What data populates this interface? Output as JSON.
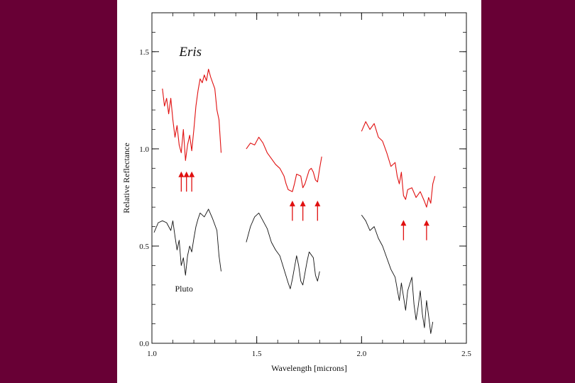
{
  "colors": {
    "background": "#680035",
    "panel": "#ffffff",
    "eris": "#e01010",
    "pluto": "#111111",
    "arrow": "#e01010"
  },
  "chart_data": {
    "type": "line",
    "xlabel": "Wavelength [microns]",
    "ylabel": "Relative Reflectance",
    "xlim": [
      1.0,
      2.5
    ],
    "ylim": [
      0.0,
      1.7
    ],
    "xticks": [
      "1.0",
      "1.5",
      "2.0",
      "2.5"
    ],
    "yticks": [
      "0.0",
      "0.5",
      "1.0",
      "1.5"
    ],
    "xtick_values": [
      1.0,
      1.5,
      2.0,
      2.5
    ],
    "ytick_values": [
      0.0,
      0.5,
      1.0,
      1.5
    ],
    "grid": false,
    "labels": {
      "eris": "Eris",
      "pluto": "Pluto"
    },
    "series": [
      {
        "name": "Eris",
        "segments": [
          [
            [
              1.05,
              1.31
            ],
            [
              1.06,
              1.22
            ],
            [
              1.07,
              1.26
            ],
            [
              1.08,
              1.18
            ],
            [
              1.09,
              1.26
            ],
            [
              1.1,
              1.15
            ],
            [
              1.11,
              1.06
            ],
            [
              1.12,
              1.12
            ],
            [
              1.13,
              1.02
            ],
            [
              1.14,
              0.98
            ],
            [
              1.15,
              1.1
            ],
            [
              1.16,
              0.94
            ],
            [
              1.17,
              1.02
            ],
            [
              1.18,
              1.07
            ],
            [
              1.19,
              0.99
            ],
            [
              1.2,
              1.1
            ],
            [
              1.21,
              1.22
            ],
            [
              1.22,
              1.3
            ],
            [
              1.23,
              1.36
            ],
            [
              1.24,
              1.34
            ],
            [
              1.25,
              1.38
            ],
            [
              1.26,
              1.35
            ],
            [
              1.27,
              1.41
            ],
            [
              1.28,
              1.37
            ],
            [
              1.29,
              1.34
            ],
            [
              1.3,
              1.31
            ],
            [
              1.31,
              1.2
            ],
            [
              1.32,
              1.15
            ],
            [
              1.33,
              0.98
            ]
          ],
          [
            [
              1.45,
              1.0
            ],
            [
              1.47,
              1.03
            ],
            [
              1.49,
              1.02
            ],
            [
              1.51,
              1.06
            ],
            [
              1.53,
              1.03
            ],
            [
              1.55,
              0.98
            ],
            [
              1.57,
              0.95
            ],
            [
              1.59,
              0.92
            ],
            [
              1.61,
              0.9
            ],
            [
              1.63,
              0.86
            ],
            [
              1.64,
              0.82
            ],
            [
              1.65,
              0.79
            ],
            [
              1.67,
              0.78
            ],
            [
              1.68,
              0.82
            ],
            [
              1.69,
              0.87
            ],
            [
              1.71,
              0.86
            ],
            [
              1.72,
              0.8
            ],
            [
              1.73,
              0.82
            ],
            [
              1.75,
              0.89
            ],
            [
              1.76,
              0.9
            ],
            [
              1.77,
              0.88
            ],
            [
              1.78,
              0.84
            ],
            [
              1.79,
              0.83
            ],
            [
              1.8,
              0.9
            ],
            [
              1.81,
              0.96
            ]
          ],
          [
            [
              2.0,
              1.09
            ],
            [
              2.02,
              1.14
            ],
            [
              2.04,
              1.1
            ],
            [
              2.06,
              1.13
            ],
            [
              2.08,
              1.06
            ],
            [
              2.1,
              1.04
            ],
            [
              2.12,
              0.98
            ],
            [
              2.14,
              0.91
            ],
            [
              2.16,
              0.93
            ],
            [
              2.17,
              0.86
            ],
            [
              2.18,
              0.82
            ],
            [
              2.19,
              0.88
            ],
            [
              2.2,
              0.76
            ],
            [
              2.21,
              0.74
            ],
            [
              2.22,
              0.79
            ],
            [
              2.24,
              0.8
            ],
            [
              2.26,
              0.75
            ],
            [
              2.28,
              0.78
            ],
            [
              2.3,
              0.73
            ],
            [
              2.31,
              0.7
            ],
            [
              2.32,
              0.75
            ],
            [
              2.33,
              0.72
            ],
            [
              2.34,
              0.82
            ],
            [
              2.35,
              0.86
            ]
          ]
        ]
      },
      {
        "name": "Pluto",
        "segments": [
          [
            [
              1.01,
              0.57
            ],
            [
              1.03,
              0.62
            ],
            [
              1.05,
              0.63
            ],
            [
              1.07,
              0.62
            ],
            [
              1.09,
              0.58
            ],
            [
              1.1,
              0.63
            ],
            [
              1.11,
              0.55
            ],
            [
              1.12,
              0.48
            ],
            [
              1.13,
              0.53
            ],
            [
              1.14,
              0.4
            ],
            [
              1.15,
              0.44
            ],
            [
              1.16,
              0.35
            ],
            [
              1.17,
              0.45
            ],
            [
              1.18,
              0.5
            ],
            [
              1.19,
              0.47
            ],
            [
              1.2,
              0.54
            ],
            [
              1.21,
              0.6
            ],
            [
              1.22,
              0.64
            ],
            [
              1.23,
              0.67
            ],
            [
              1.25,
              0.65
            ],
            [
              1.27,
              0.69
            ],
            [
              1.29,
              0.64
            ],
            [
              1.31,
              0.58
            ],
            [
              1.32,
              0.45
            ],
            [
              1.33,
              0.37
            ]
          ],
          [
            [
              1.45,
              0.52
            ],
            [
              1.47,
              0.6
            ],
            [
              1.49,
              0.65
            ],
            [
              1.51,
              0.67
            ],
            [
              1.53,
              0.63
            ],
            [
              1.55,
              0.59
            ],
            [
              1.57,
              0.52
            ],
            [
              1.59,
              0.48
            ],
            [
              1.61,
              0.45
            ],
            [
              1.63,
              0.38
            ],
            [
              1.65,
              0.31
            ],
            [
              1.66,
              0.28
            ],
            [
              1.67,
              0.33
            ],
            [
              1.69,
              0.45
            ],
            [
              1.7,
              0.4
            ],
            [
              1.71,
              0.32
            ],
            [
              1.72,
              0.3
            ],
            [
              1.74,
              0.42
            ],
            [
              1.75,
              0.47
            ],
            [
              1.77,
              0.44
            ],
            [
              1.78,
              0.35
            ],
            [
              1.79,
              0.32
            ],
            [
              1.8,
              0.37
            ]
          ],
          [
            [
              2.0,
              0.66
            ],
            [
              2.02,
              0.63
            ],
            [
              2.04,
              0.58
            ],
            [
              2.06,
              0.6
            ],
            [
              2.08,
              0.54
            ],
            [
              2.1,
              0.5
            ],
            [
              2.12,
              0.44
            ],
            [
              2.14,
              0.38
            ],
            [
              2.16,
              0.34
            ],
            [
              2.17,
              0.28
            ],
            [
              2.18,
              0.22
            ],
            [
              2.19,
              0.31
            ],
            [
              2.2,
              0.24
            ],
            [
              2.21,
              0.17
            ],
            [
              2.22,
              0.27
            ],
            [
              2.24,
              0.34
            ],
            [
              2.25,
              0.2
            ],
            [
              2.26,
              0.12
            ],
            [
              2.27,
              0.19
            ],
            [
              2.28,
              0.27
            ],
            [
              2.29,
              0.15
            ],
            [
              2.3,
              0.08
            ],
            [
              2.31,
              0.22
            ],
            [
              2.32,
              0.14
            ],
            [
              2.33,
              0.05
            ],
            [
              2.34,
              0.11
            ]
          ]
        ]
      }
    ],
    "arrows": [
      {
        "x": 1.14,
        "y_tail": 0.78,
        "y_head": 0.88
      },
      {
        "x": 1.165,
        "y_tail": 0.78,
        "y_head": 0.88
      },
      {
        "x": 1.19,
        "y_tail": 0.78,
        "y_head": 0.88
      },
      {
        "x": 1.67,
        "y_tail": 0.63,
        "y_head": 0.73
      },
      {
        "x": 1.72,
        "y_tail": 0.63,
        "y_head": 0.73
      },
      {
        "x": 1.79,
        "y_tail": 0.63,
        "y_head": 0.73
      },
      {
        "x": 2.2,
        "y_tail": 0.53,
        "y_head": 0.63
      },
      {
        "x": 2.31,
        "y_tail": 0.53,
        "y_head": 0.63
      }
    ],
    "annotations": [
      {
        "text_key": "eris",
        "x": 1.13,
        "y": 1.5
      },
      {
        "text_key": "pluto",
        "x": 1.11,
        "y": 0.28
      }
    ]
  }
}
